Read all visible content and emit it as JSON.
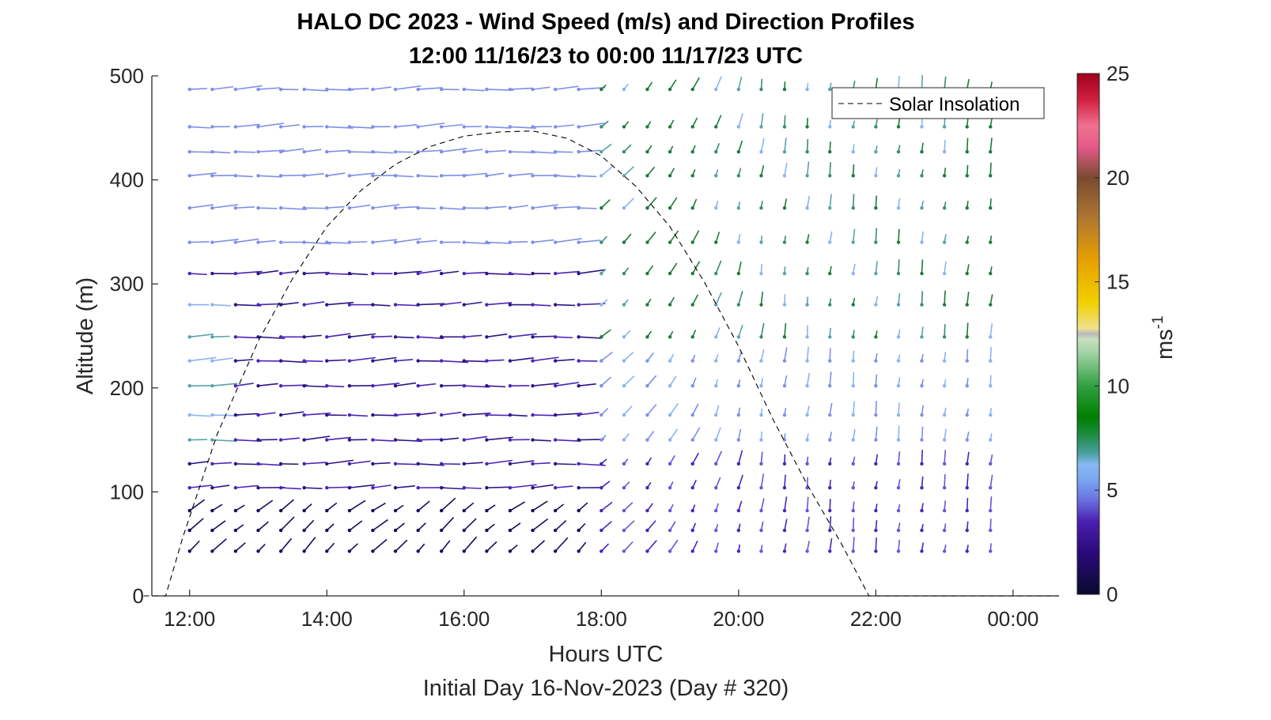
{
  "chart_data": {
    "type": "quiver",
    "title": "HALO DC 2023 - Wind Speed (m/s) and Direction Profiles",
    "subtitle": "12:00 11/16/23 to 00:00 11/17/23  UTC",
    "xlabel": "Hours UTC",
    "footer": "Initial Day 16-Nov-2023 (Day # 320)",
    "ylabel": "Altitude (m)",
    "xlim": [
      11.45,
      24.67
    ],
    "ylim": [
      0,
      500
    ],
    "x_ticks": [
      12,
      14,
      16,
      18,
      20,
      22,
      24
    ],
    "x_tick_labels": [
      "12:00",
      "14:00",
      "16:00",
      "18:00",
      "20:00",
      "22:00",
      "00:00"
    ],
    "y_ticks": [
      0,
      100,
      200,
      300,
      400,
      500
    ],
    "y_tick_labels": [
      "0",
      "100",
      "200",
      "300",
      "400",
      "500"
    ],
    "colorbar": {
      "label": "ms",
      "label_superscript": "-1",
      "range": [
        0,
        25
      ],
      "ticks": [
        0,
        5,
        10,
        15,
        20,
        25
      ],
      "tick_labels": [
        "0",
        "5",
        "10",
        "15",
        "20",
        "25"
      ]
    },
    "legend": {
      "location": "top-right",
      "entries": [
        "Solar Insolation"
      ]
    },
    "solar_insolation": {
      "style": "dashed",
      "color": "#000000",
      "points": [
        [
          11.33,
          0
        ],
        [
          11.65,
          0
        ],
        [
          11.9,
          56
        ],
        [
          12.4,
          155
        ],
        [
          13.0,
          245
        ],
        [
          13.5,
          305
        ],
        [
          14.0,
          355
        ],
        [
          14.5,
          390
        ],
        [
          15.0,
          415
        ],
        [
          15.5,
          432
        ],
        [
          16.0,
          442
        ],
        [
          16.5,
          446
        ],
        [
          17.0,
          447
        ],
        [
          17.5,
          440
        ],
        [
          18.0,
          423
        ],
        [
          18.5,
          394
        ],
        [
          19.0,
          355
        ],
        [
          19.5,
          302
        ],
        [
          20.0,
          240
        ],
        [
          20.5,
          170
        ],
        [
          21.0,
          107
        ],
        [
          21.5,
          50
        ],
        [
          21.9,
          0
        ],
        [
          24.67,
          0
        ]
      ]
    },
    "wind_barbs": {
      "times": [
        12.0,
        12.33,
        12.67,
        13.0,
        13.33,
        13.67,
        14.0,
        14.33,
        14.67,
        15.0,
        15.33,
        15.67,
        16.0,
        16.33,
        16.67,
        17.0,
        17.33,
        17.67,
        18.0,
        18.33,
        18.67,
        19.0,
        19.33,
        19.67,
        20.0,
        20.33,
        20.67,
        21.0,
        21.33,
        21.67,
        22.0,
        22.33,
        22.67,
        23.0,
        23.33,
        23.67
      ],
      "altitudes": [
        43,
        63,
        82,
        104,
        127,
        150,
        174,
        202,
        226,
        249,
        280,
        310,
        340,
        373,
        404,
        427,
        451,
        487
      ],
      "note": "each barb shows wind direction and speed; color scale 0-25 m/s"
    }
  }
}
